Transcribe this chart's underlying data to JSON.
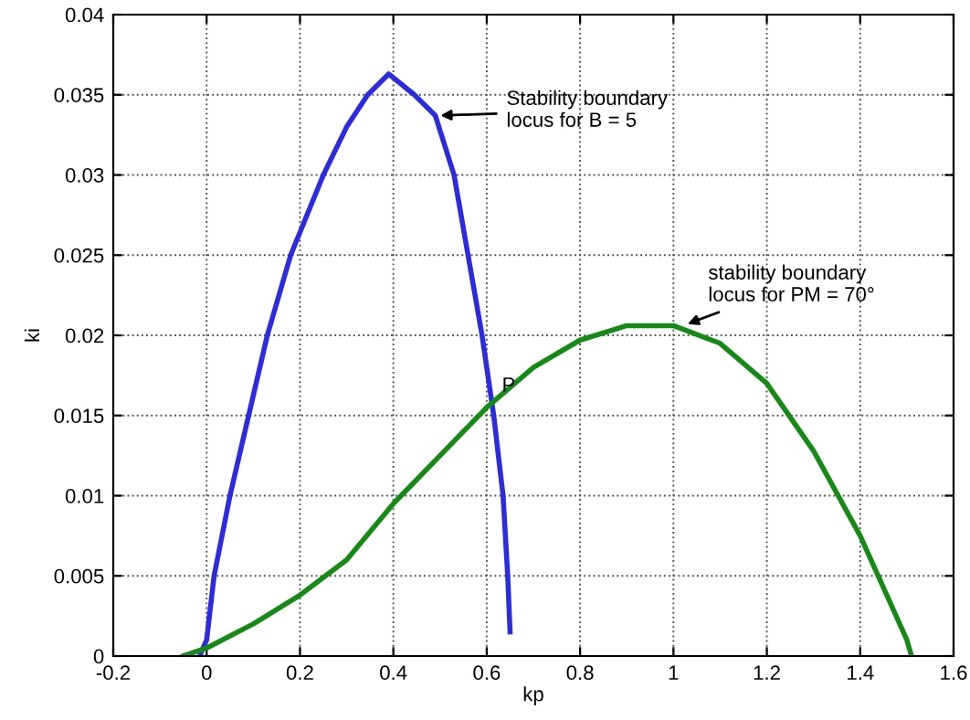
{
  "chart_data": {
    "type": "line",
    "xlabel": "kp",
    "ylabel": "ki",
    "xlim": [
      -0.2,
      1.6
    ],
    "ylim": [
      0,
      0.04
    ],
    "xticks": [
      {
        "value": -0.2,
        "label": "-0.2"
      },
      0,
      0.2,
      0.4,
      0.6,
      0.8,
      1,
      1.2,
      1.4,
      1.6
    ],
    "yticks": [
      0,
      0.005,
      0.01,
      0.015,
      0.02,
      0.025,
      0.03,
      0.035,
      0.04
    ],
    "grid": true,
    "legend": false,
    "marker": "none",
    "line_style": "solid",
    "series": [
      {
        "color": "#2b2bdf",
        "x": [
          -0.015,
          0.0,
          0.016,
          0.05,
          0.09,
          0.13,
          0.18,
          0.25,
          0.3,
          0.345,
          0.39,
          0.445,
          0.49,
          0.53,
          0.56,
          0.59,
          0.615,
          0.635,
          0.645,
          0.65
        ],
        "values": [
          0,
          0.001,
          0.005,
          0.01,
          0.015,
          0.02,
          0.025,
          0.03,
          0.033,
          0.035,
          0.0363,
          0.035,
          0.0337,
          0.03,
          0.025,
          0.02,
          0.015,
          0.01,
          0.005,
          0.0015
        ]
      },
      {
        "color": "#168a16",
        "x": [
          -0.05,
          0.0,
          0.1,
          0.2,
          0.3,
          0.4,
          0.5,
          0.6,
          0.7,
          0.8,
          0.9,
          1.0,
          1.1,
          1.2,
          1.3,
          1.4,
          1.5,
          1.51
        ],
        "values": [
          0,
          0.0005,
          0.002,
          0.0038,
          0.006,
          0.0095,
          0.0125,
          0.0155,
          0.018,
          0.0197,
          0.0206,
          0.0206,
          0.0195,
          0.017,
          0.0128,
          0.0075,
          0.001,
          0
        ]
      }
    ],
    "annotations": [
      {
        "text": "Stability boundary\nlocus for B = 5",
        "x": 0.49,
        "y": 0.0337
      },
      {
        "text": "stability boundary\nlocus for PM = 70°",
        "x": 1.02,
        "y": 0.0206
      },
      {
        "text": "P",
        "x": 0.6,
        "y": 0.0156
      }
    ]
  }
}
